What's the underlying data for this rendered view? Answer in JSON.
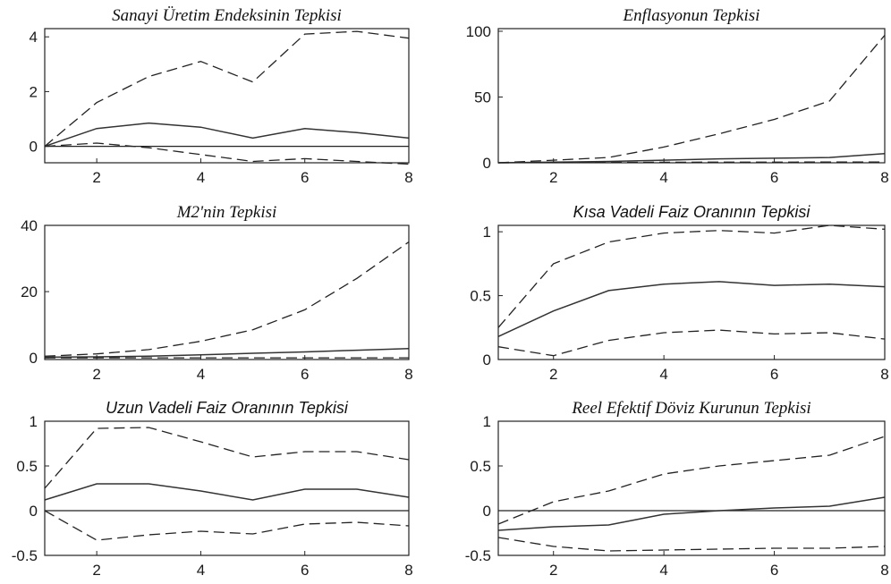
{
  "chart_data": [
    {
      "type": "line",
      "title": "Sanayi Üretim Endeksinin Tepkisi",
      "title_style": "serif",
      "x": [
        1,
        2,
        3,
        4,
        5,
        6,
        7,
        8
      ],
      "xlim": [
        1,
        8
      ],
      "ylim": [
        -0.6,
        4.3
      ],
      "xticks": [
        2,
        4,
        6,
        8
      ],
      "yticks": [
        0,
        2,
        4
      ],
      "zero_line": true,
      "series": [
        {
          "style": "dashed",
          "values": [
            0,
            1.6,
            2.55,
            3.1,
            2.35,
            4.1,
            4.2,
            3.95
          ]
        },
        {
          "style": "solid",
          "values": [
            0,
            0.65,
            0.85,
            0.7,
            0.3,
            0.65,
            0.5,
            0.3
          ]
        },
        {
          "style": "dashed",
          "values": [
            0,
            0.12,
            -0.05,
            -0.3,
            -0.55,
            -0.45,
            -0.55,
            -0.65
          ]
        }
      ]
    },
    {
      "type": "line",
      "title": "Enflasyonun Tepkisi",
      "title_style": "serif",
      "x": [
        1,
        2,
        3,
        4,
        5,
        6,
        7,
        8
      ],
      "xlim": [
        1,
        8
      ],
      "ylim": [
        0,
        102
      ],
      "xticks": [
        2,
        4,
        6,
        8
      ],
      "yticks": [
        0,
        50,
        100
      ],
      "zero_line": false,
      "series": [
        {
          "style": "dashed",
          "values": [
            0,
            2,
            4,
            12,
            22,
            33,
            47,
            97
          ]
        },
        {
          "style": "solid",
          "values": [
            0,
            0.5,
            1,
            2,
            3,
            3.5,
            4,
            7
          ]
        },
        {
          "style": "dashed",
          "values": [
            0,
            0.2,
            0.3,
            0.4,
            0.5,
            0.5,
            0.6,
            0.6
          ]
        }
      ]
    },
    {
      "type": "line",
      "title": "M2'nin Tepkisi",
      "title_style": "serif",
      "x": [
        1,
        2,
        3,
        4,
        5,
        6,
        7,
        8
      ],
      "xlim": [
        1,
        8
      ],
      "ylim": [
        -0.5,
        40
      ],
      "xticks": [
        2,
        4,
        6,
        8
      ],
      "yticks": [
        0,
        20,
        40
      ],
      "zero_line": false,
      "series": [
        {
          "style": "dashed",
          "values": [
            0.5,
            1.2,
            2.5,
            5,
            8.5,
            14.5,
            24,
            35
          ]
        },
        {
          "style": "solid",
          "values": [
            0.2,
            0.3,
            0.5,
            0.9,
            1.4,
            1.8,
            2.3,
            2.8
          ]
        },
        {
          "style": "dashed",
          "values": [
            0,
            0,
            0,
            0,
            0,
            0,
            0,
            0
          ]
        }
      ]
    },
    {
      "type": "line",
      "title": "Kısa Vadeli Faiz Oranının Tepkisi",
      "title_style": "sans",
      "x": [
        1,
        2,
        3,
        4,
        5,
        6,
        7,
        8
      ],
      "xlim": [
        1,
        8
      ],
      "ylim": [
        0,
        1.05
      ],
      "xticks": [
        2,
        4,
        6,
        8
      ],
      "yticks": [
        0,
        0.5,
        1
      ],
      "zero_line": false,
      "series": [
        {
          "style": "dashed",
          "values": [
            0.25,
            0.75,
            0.92,
            0.99,
            1.01,
            0.99,
            1.05,
            1.02
          ]
        },
        {
          "style": "solid",
          "values": [
            0.18,
            0.38,
            0.54,
            0.59,
            0.61,
            0.58,
            0.59,
            0.57
          ]
        },
        {
          "style": "dashed",
          "values": [
            0.1,
            0.03,
            0.15,
            0.21,
            0.23,
            0.2,
            0.21,
            0.16
          ]
        }
      ]
    },
    {
      "type": "line",
      "title": "Uzun Vadeli Faiz Oranının Tepkisi",
      "title_style": "sans",
      "x": [
        1,
        2,
        3,
        4,
        5,
        6,
        7,
        8
      ],
      "xlim": [
        1,
        8
      ],
      "ylim": [
        -0.5,
        1
      ],
      "xticks": [
        2,
        4,
        6,
        8
      ],
      "yticks": [
        -0.5,
        0,
        0.5,
        1
      ],
      "zero_line": true,
      "series": [
        {
          "style": "dashed",
          "values": [
            0.25,
            0.92,
            0.93,
            0.77,
            0.6,
            0.66,
            0.66,
            0.57
          ]
        },
        {
          "style": "solid",
          "values": [
            0.12,
            0.3,
            0.3,
            0.22,
            0.12,
            0.24,
            0.24,
            0.15
          ]
        },
        {
          "style": "dashed",
          "values": [
            0,
            -0.33,
            -0.27,
            -0.23,
            -0.26,
            -0.15,
            -0.13,
            -0.17
          ]
        }
      ]
    },
    {
      "type": "line",
      "title": "Reel Efektif Döviz Kurunun Tepkisi",
      "title_style": "serif",
      "x": [
        1,
        2,
        3,
        4,
        5,
        6,
        7,
        8
      ],
      "xlim": [
        1,
        8
      ],
      "ylim": [
        -0.5,
        1
      ],
      "xticks": [
        2,
        4,
        6,
        8
      ],
      "yticks": [
        -0.5,
        0,
        0.5,
        1
      ],
      "zero_line": true,
      "series": [
        {
          "style": "dashed",
          "values": [
            -0.15,
            0.1,
            0.22,
            0.41,
            0.5,
            0.56,
            0.62,
            0.83
          ]
        },
        {
          "style": "solid",
          "values": [
            -0.22,
            -0.18,
            -0.16,
            -0.04,
            0,
            0.03,
            0.05,
            0.15
          ]
        },
        {
          "style": "dashed",
          "values": [
            -0.3,
            -0.4,
            -0.45,
            -0.44,
            -0.43,
            -0.42,
            -0.42,
            -0.4
          ]
        }
      ]
    }
  ]
}
